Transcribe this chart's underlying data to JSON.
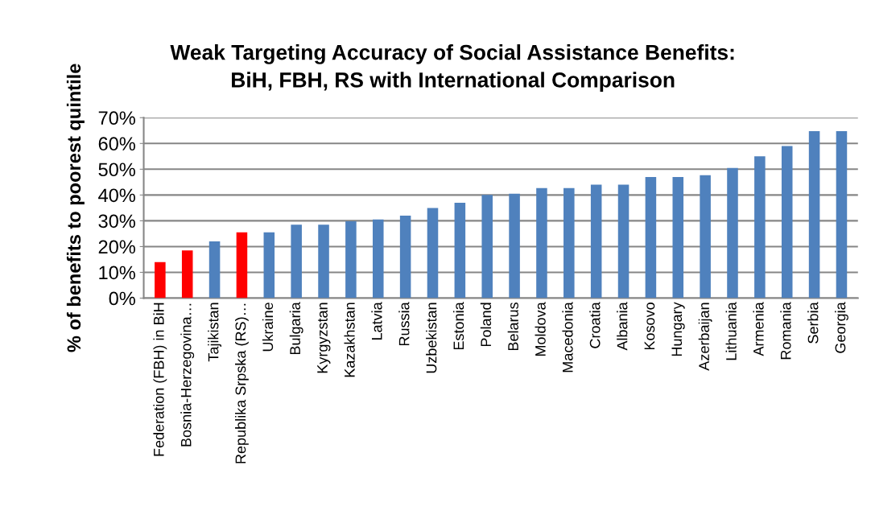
{
  "chart_data": {
    "type": "bar",
    "title": "Weak Targeting Accuracy of Social Assistance Benefits:\nBiH, FBH, RS with International Comparison",
    "ylabel": "% of benefits to poorest quintile",
    "categories": [
      "Federation (FBH) in BiH",
      "Bosnia-Herzegovina…",
      "Tajikistan",
      "Republika Srpska (RS)…",
      "Ukraine",
      "Bulgaria",
      "Kyrgyzstan",
      "Kazakhstan",
      "Latvia",
      "Russia",
      "Uzbekistan",
      "Estonia",
      "Poland",
      "Belarus",
      "Moldova",
      "Macedonia",
      "Croatia",
      "Albania",
      "Kosovo",
      "Hungary",
      "Azerbaijan",
      "Lithuania",
      "Armenia",
      "Romania",
      "Serbia",
      "Georgia"
    ],
    "values": [
      14,
      18.5,
      22,
      25.5,
      25.5,
      28.5,
      28.5,
      29.8,
      30.5,
      32,
      35,
      37,
      40,
      40.5,
      42.7,
      42.7,
      44,
      44,
      47,
      47,
      47.7,
      50.5,
      55,
      59,
      64.8,
      64.8
    ],
    "colors": [
      "#ff0000",
      "#ff0000",
      "#4f81bd",
      "#ff0000",
      "#4f81bd",
      "#4f81bd",
      "#4f81bd",
      "#4f81bd",
      "#4f81bd",
      "#4f81bd",
      "#4f81bd",
      "#4f81bd",
      "#4f81bd",
      "#4f81bd",
      "#4f81bd",
      "#4f81bd",
      "#4f81bd",
      "#4f81bd",
      "#4f81bd",
      "#4f81bd",
      "#4f81bd",
      "#4f81bd",
      "#4f81bd",
      "#4f81bd",
      "#4f81bd",
      "#4f81bd"
    ],
    "ylim": [
      0,
      70
    ],
    "yticks": [
      {
        "value": 0,
        "label": "0%"
      },
      {
        "value": 10,
        "label": "10%"
      },
      {
        "value": 20,
        "label": "20%"
      },
      {
        "value": 30,
        "label": "30%"
      },
      {
        "value": 40,
        "label": "40%"
      },
      {
        "value": 50,
        "label": "50%"
      },
      {
        "value": 60,
        "label": "60%"
      },
      {
        "value": 70,
        "label": "70%"
      }
    ],
    "grid": "y",
    "legend": false
  }
}
